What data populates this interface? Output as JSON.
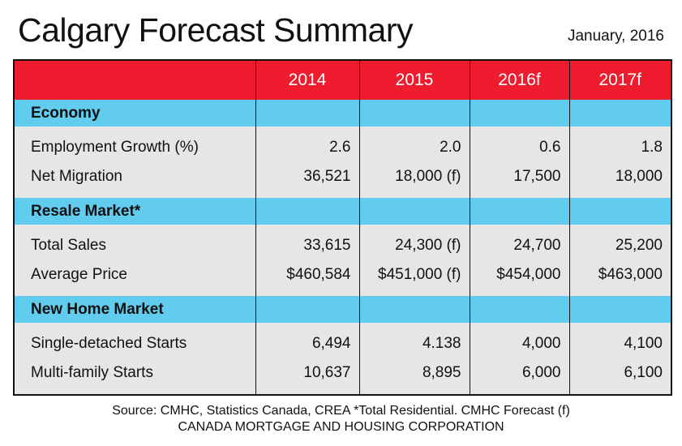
{
  "header": {
    "title": "Calgary Forecast Summary",
    "date": "January, 2016"
  },
  "colors": {
    "header_red": "#ee1c2e",
    "section_blue": "#61ccee",
    "row_gray": "#e6e6e6"
  },
  "table": {
    "columns": [
      "",
      "2014",
      "2015",
      "2016f",
      "2017f"
    ],
    "sections": [
      {
        "name": "Economy",
        "rows": [
          {
            "label": "Employment Growth (%)",
            "values": [
              "2.6",
              "2.0",
              "0.6",
              "1.8"
            ]
          },
          {
            "label": "Net Migration",
            "values": [
              "36,521",
              "18,000 (f)",
              "17,500",
              "18,000"
            ]
          }
        ]
      },
      {
        "name": "Resale Market*",
        "rows": [
          {
            "label": "Total Sales",
            "values": [
              "33,615",
              "24,300 (f)",
              "24,700",
              "25,200"
            ]
          },
          {
            "label": "Average Price",
            "values": [
              "$460,584",
              "$451,000 (f)",
              "$454,000",
              "$463,000"
            ]
          }
        ]
      },
      {
        "name": "New Home Market",
        "rows": [
          {
            "label": "Single-detached Starts",
            "values": [
              "6,494",
              "4.138",
              "4,000",
              "4,100"
            ]
          },
          {
            "label": "Multi-family Starts",
            "values": [
              "10,637",
              "8,895",
              "6,000",
              "6,100"
            ]
          }
        ]
      }
    ]
  },
  "footer": {
    "source": "Source: CMHC, Statistics Canada, CREA *Total Residential. CMHC Forecast (f)",
    "org": "CANADA MORTGAGE AND HOUSING CORPORATION"
  }
}
